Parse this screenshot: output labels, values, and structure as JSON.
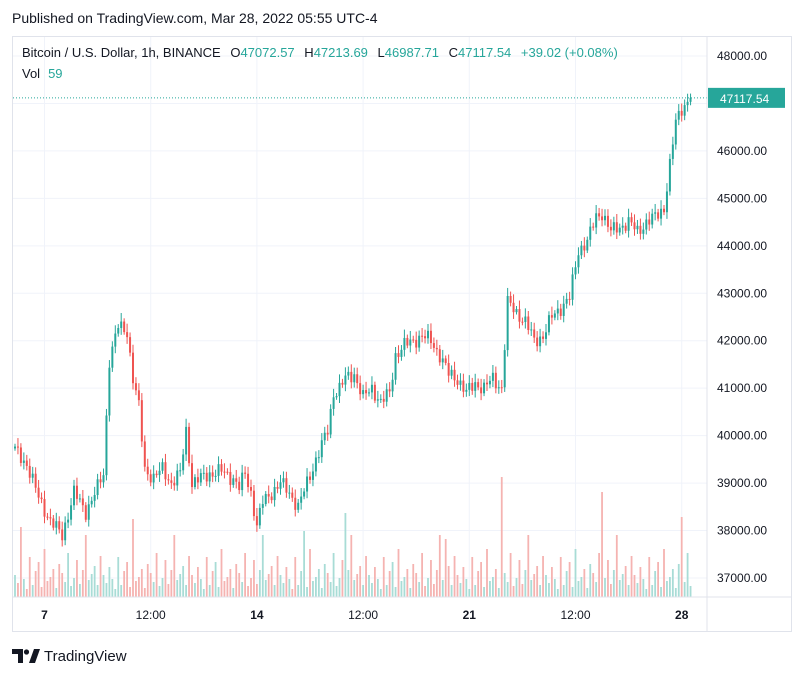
{
  "header": {
    "published": "Published on TradingView.com, Mar 28, 2022 05:55 UTC-4"
  },
  "legend": {
    "symbol": "Bitcoin / U.S. Dollar, 1h, BINANCE",
    "open_label": "O",
    "open": "47072.57",
    "high_label": "H",
    "high": "47213.69",
    "low_label": "L",
    "low": "46987.71",
    "close_label": "C",
    "close": "47117.54",
    "change": "+39.02 (+0.08%)",
    "vol_label": "Vol",
    "vol": "59"
  },
  "brand": {
    "name": "TradingView"
  },
  "colors": {
    "up": "#26a69a",
    "down": "#ef5350",
    "grid": "#f0f3fa",
    "price_tag": "#26a69a"
  },
  "chart_data": {
    "type": "candlestick",
    "symbol": "Bitcoin / U.S. Dollar",
    "interval": "1h",
    "exchange": "BINANCE",
    "y_ticks": [
      "48000.00",
      "47000.00",
      "46000.00",
      "45000.00",
      "44000.00",
      "43000.00",
      "42000.00",
      "41000.00",
      "40000.00",
      "39000.00",
      "38000.00",
      "37000.00"
    ],
    "y_tick_values": [
      48000,
      47000,
      46000,
      45000,
      44000,
      43000,
      42000,
      41000,
      40000,
      39000,
      38000,
      37000
    ],
    "ylim": [
      36600,
      48400
    ],
    "x_ticks": [
      {
        "label": "7",
        "bold": true,
        "index": 10
      },
      {
        "label": "12:00",
        "bold": false,
        "index": 46
      },
      {
        "label": "14",
        "bold": true,
        "index": 82
      },
      {
        "label": "12:00",
        "bold": false,
        "index": 118
      },
      {
        "label": "21",
        "bold": true,
        "index": 154
      },
      {
        "label": "12:00",
        "bold": false,
        "index": 190
      },
      {
        "label": "28",
        "bold": true,
        "index": 226
      }
    ],
    "last_price": "47117.54",
    "last_value": 47117.54,
    "close_anchors": [
      [
        0,
        39700
      ],
      [
        4,
        39400
      ],
      [
        8,
        38700
      ],
      [
        12,
        38200
      ],
      [
        16,
        37900
      ],
      [
        20,
        38800
      ],
      [
        24,
        38400
      ],
      [
        28,
        38900
      ],
      [
        30,
        39200
      ],
      [
        32,
        41600
      ],
      [
        35,
        42300
      ],
      [
        38,
        42200
      ],
      [
        40,
        41200
      ],
      [
        42,
        40600
      ],
      [
        44,
        39300
      ],
      [
        47,
        39100
      ],
      [
        50,
        39300
      ],
      [
        53,
        39000
      ],
      [
        56,
        39200
      ],
      [
        58,
        40100
      ],
      [
        60,
        39000
      ],
      [
        63,
        39100
      ],
      [
        66,
        39200
      ],
      [
        70,
        39250
      ],
      [
        74,
        39100
      ],
      [
        76,
        38900
      ],
      [
        78,
        39200
      ],
      [
        80,
        38800
      ],
      [
        82,
        38100
      ],
      [
        84,
        38600
      ],
      [
        87,
        38800
      ],
      [
        90,
        39000
      ],
      [
        93,
        38800
      ],
      [
        96,
        38500
      ],
      [
        99,
        39000
      ],
      [
        102,
        39500
      ],
      [
        104,
        39800
      ],
      [
        106,
        40100
      ],
      [
        108,
        40900
      ],
      [
        110,
        41000
      ],
      [
        112,
        41200
      ],
      [
        115,
        41300
      ],
      [
        118,
        40800
      ],
      [
        121,
        41000
      ],
      [
        124,
        40700
      ],
      [
        127,
        40900
      ],
      [
        129,
        41700
      ],
      [
        132,
        41900
      ],
      [
        135,
        42000
      ],
      [
        138,
        42100
      ],
      [
        141,
        42000
      ],
      [
        144,
        41700
      ],
      [
        147,
        41300
      ],
      [
        150,
        41200
      ],
      [
        153,
        40900
      ],
      [
        156,
        41100
      ],
      [
        159,
        41000
      ],
      [
        162,
        41200
      ],
      [
        165,
        41000
      ],
      [
        167,
        42800
      ],
      [
        170,
        42600
      ],
      [
        173,
        42400
      ],
      [
        176,
        42000
      ],
      [
        179,
        42100
      ],
      [
        182,
        42500
      ],
      [
        185,
        42700
      ],
      [
        188,
        42900
      ],
      [
        191,
        43900
      ],
      [
        194,
        44100
      ],
      [
        197,
        44600
      ],
      [
        199,
        44700
      ],
      [
        202,
        44300
      ],
      [
        205,
        44400
      ],
      [
        208,
        44500
      ],
      [
        211,
        44300
      ],
      [
        214,
        44500
      ],
      [
        217,
        44600
      ],
      [
        220,
        44800
      ],
      [
        222,
        45700
      ],
      [
        224,
        46600
      ],
      [
        226,
        46900
      ],
      [
        229,
        47117.54
      ]
    ],
    "vol_pattern": [
      22,
      14,
      30,
      18,
      8,
      40,
      12,
      26,
      35,
      10,
      48,
      16,
      20,
      28,
      9,
      33,
      24,
      15,
      44,
      11,
      19,
      37,
      13,
      27,
      62,
      17,
      23,
      31,
      12,
      41
    ],
    "vol_spikes": [
      [
        2,
        70
      ],
      [
        40,
        78
      ],
      [
        98,
        66
      ],
      [
        112,
        84
      ],
      [
        146,
        58
      ],
      [
        165,
        120
      ],
      [
        199,
        105
      ],
      [
        226,
        80
      ]
    ]
  }
}
